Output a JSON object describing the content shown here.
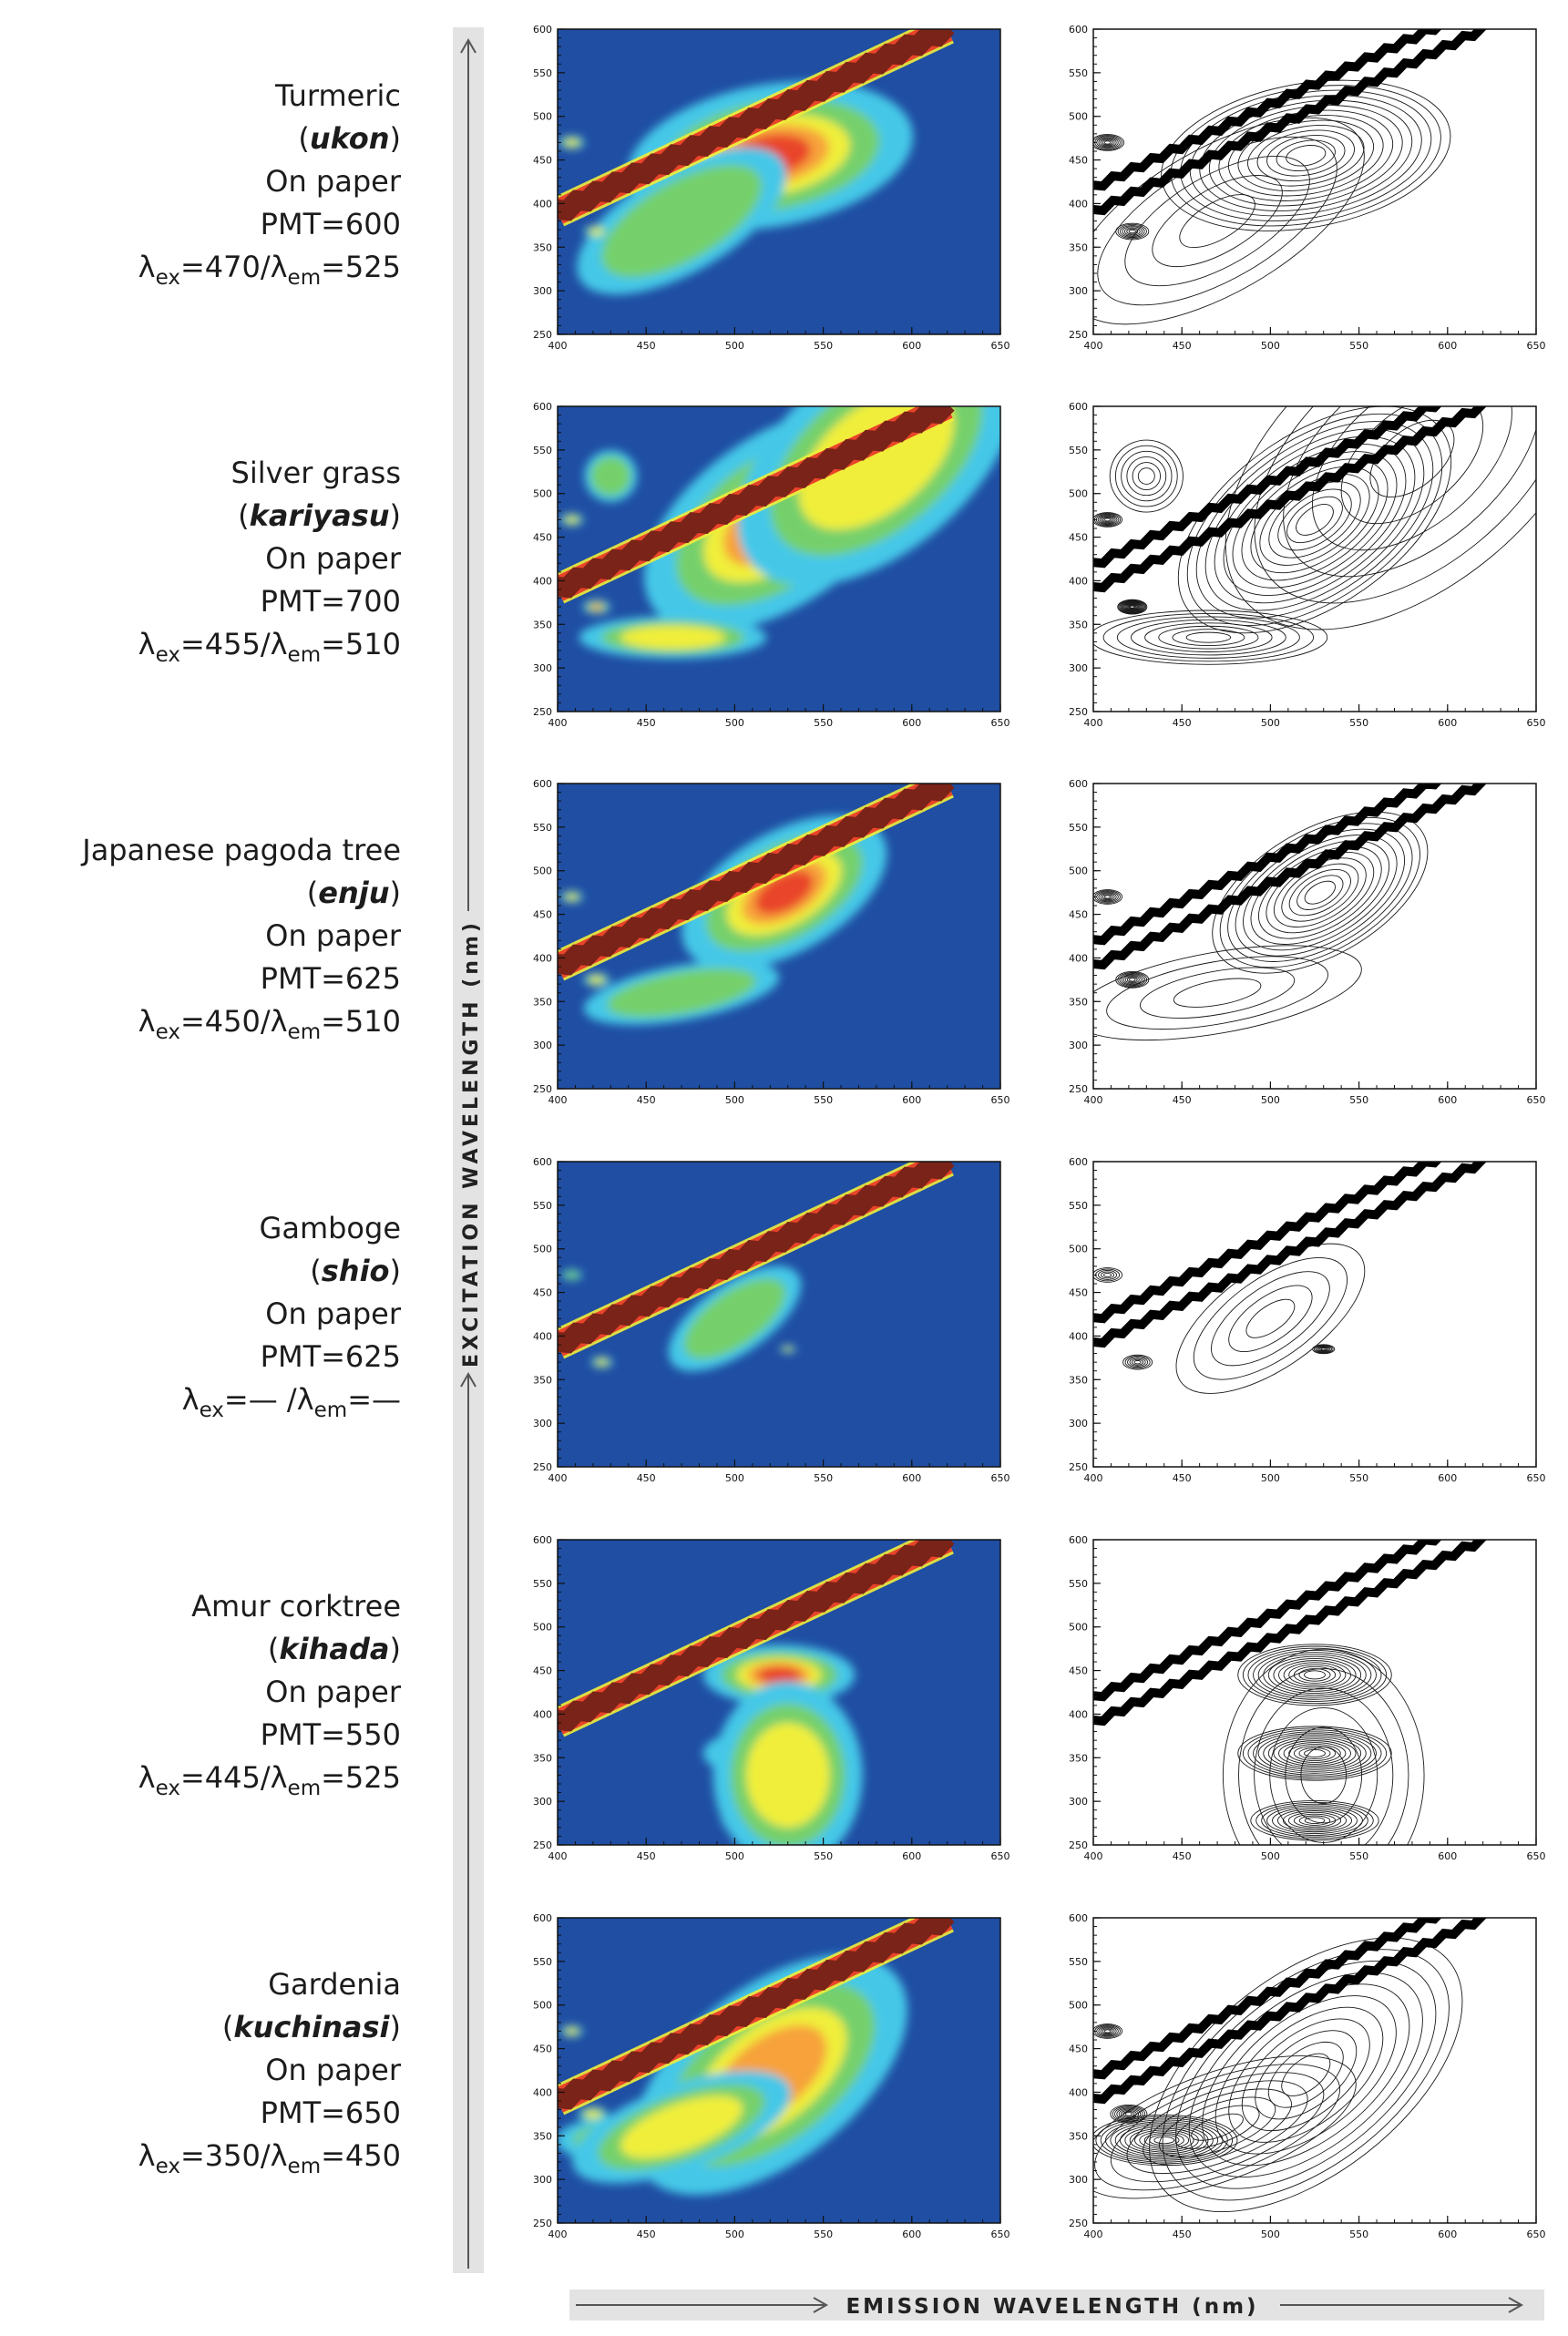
{
  "figure": {
    "y_axis_title": "EXCITATION WAVELENGTH (nm)",
    "x_axis_title": "EMISSION WAVELENGTH (nm)"
  },
  "colors": {
    "low": "#1f4ea3",
    "cyan": "#44c8e8",
    "green": "#74d06c",
    "yellow": "#f0ee3a",
    "orange": "#f7a23a",
    "red": "#e9442a",
    "band": "#7a2318",
    "axis_bar": "#e3e3e3"
  },
  "chart_data": [
    {
      "type": "heatmap",
      "name": "Turmeric",
      "label": {
        "name": "Turmeric",
        "open": "(",
        "common": "ukon",
        "close": ")",
        "substrate": "On paper",
        "pmt": "PMT=600",
        "ex": "470",
        "em": "525",
        "sep": "/"
      },
      "xlim": [
        400,
        650
      ],
      "ylim": [
        250,
        600
      ],
      "x_ticks": [
        400,
        450,
        500,
        550,
        600,
        650
      ],
      "y_ticks": [
        250,
        300,
        350,
        400,
        450,
        500,
        550,
        600
      ],
      "scatter_band": {
        "x0": 400,
        "y0": 390,
        "x1": 620,
        "y1": 600,
        "width_nm": 16
      },
      "second_order_band": {
        "x0": 400,
        "y0": 390,
        "x1": 620,
        "y1": 600
      },
      "peaks": [
        {
          "x": 520,
          "y": 455,
          "sx": 80,
          "sy": 80,
          "rot": 10,
          "a": 1.0
        },
        {
          "x": 470,
          "y": 380,
          "sx": 90,
          "sy": 80,
          "rot": 30,
          "a": 0.38
        },
        {
          "x": 408,
          "y": 470,
          "sx": 9,
          "sy": 9,
          "rot": 0,
          "a": 0.55
        },
        {
          "x": 422,
          "y": 368,
          "sx": 9,
          "sy": 9,
          "rot": 0,
          "a": 0.5
        }
      ]
    },
    {
      "type": "heatmap",
      "name": "Silver grass",
      "label": {
        "name": "Silver grass",
        "open": "(",
        "common": "kariyasu",
        "close": ")",
        "substrate": "On paper",
        "pmt": "PMT=700",
        "ex": "455",
        "em": "510",
        "sep": "/"
      },
      "xlim": [
        400,
        650
      ],
      "ylim": [
        250,
        600
      ],
      "x_ticks": [
        400,
        450,
        500,
        550,
        600,
        650
      ],
      "y_ticks": [
        250,
        300,
        350,
        400,
        450,
        500,
        550,
        600
      ],
      "scatter_band": {
        "x0": 400,
        "y0": 390,
        "x1": 620,
        "y1": 600,
        "width_nm": 16
      },
      "second_order_band": {
        "x0": 400,
        "y0": 390,
        "x1": 620,
        "y1": 600
      },
      "peaks": [
        {
          "x": 525,
          "y": 470,
          "sx": 85,
          "sy": 95,
          "rot": 35,
          "a": 1.0
        },
        {
          "x": 465,
          "y": 335,
          "sx": 65,
          "sy": 30,
          "rot": 0,
          "a": 0.55
        },
        {
          "x": 580,
          "y": 540,
          "sx": 120,
          "sy": 140,
          "rot": 40,
          "a": 0.45
        },
        {
          "x": 430,
          "y": 520,
          "sx": 20,
          "sy": 40,
          "rot": 0,
          "a": 0.4
        },
        {
          "x": 422,
          "y": 370,
          "sx": 8,
          "sy": 8,
          "rot": 0,
          "a": 0.9
        },
        {
          "x": 408,
          "y": 470,
          "sx": 8,
          "sy": 8,
          "rot": 0,
          "a": 0.6
        }
      ]
    },
    {
      "type": "heatmap",
      "name": "Japanese pagoda tree",
      "label": {
        "name": "Japanese pagoda tree",
        "open": "(",
        "common": "enju",
        "close": ")",
        "substrate": "On paper",
        "pmt": "PMT=625",
        "ex": "450",
        "em": "510",
        "sep": "/"
      },
      "xlim": [
        400,
        650
      ],
      "ylim": [
        250,
        600
      ],
      "x_ticks": [
        400,
        450,
        500,
        550,
        600,
        650
      ],
      "y_ticks": [
        250,
        300,
        350,
        400,
        450,
        500,
        550,
        600
      ],
      "scatter_band": {
        "x0": 400,
        "y0": 390,
        "x1": 620,
        "y1": 600,
        "width_nm": 16
      },
      "second_order_band": {
        "x0": 400,
        "y0": 390,
        "x1": 620,
        "y1": 600
      },
      "peaks": [
        {
          "x": 528,
          "y": 475,
          "sx": 65,
          "sy": 70,
          "rot": 30,
          "a": 0.92
        },
        {
          "x": 470,
          "y": 360,
          "sx": 80,
          "sy": 45,
          "rot": 10,
          "a": 0.3
        },
        {
          "x": 422,
          "y": 375,
          "sx": 9,
          "sy": 9,
          "rot": 0,
          "a": 0.6
        },
        {
          "x": 408,
          "y": 470,
          "sx": 8,
          "sy": 8,
          "rot": 0,
          "a": 0.5
        }
      ]
    },
    {
      "type": "heatmap",
      "name": "Gamboge",
      "label": {
        "name": "Gamboge",
        "open": "(",
        "common": "shio",
        "close": ")",
        "substrate": "On paper",
        "pmt": "PMT=625",
        "ex": "— ",
        "em": "—",
        "sep": "/"
      },
      "xlim": [
        400,
        650
      ],
      "ylim": [
        250,
        600
      ],
      "x_ticks": [
        400,
        450,
        500,
        550,
        600,
        650
      ],
      "y_ticks": [
        250,
        300,
        350,
        400,
        450,
        500,
        550,
        600
      ],
      "scatter_band": {
        "x0": 400,
        "y0": 390,
        "x1": 620,
        "y1": 600,
        "width_nm": 16
      },
      "second_order_band": {
        "x0": 400,
        "y0": 390,
        "x1": 620,
        "y1": 600
      },
      "peaks": [
        {
          "x": 500,
          "y": 420,
          "sx": 60,
          "sy": 55,
          "rot": 35,
          "a": 0.36
        },
        {
          "x": 425,
          "y": 370,
          "sx": 8,
          "sy": 8,
          "rot": 0,
          "a": 0.45
        },
        {
          "x": 408,
          "y": 470,
          "sx": 8,
          "sy": 8,
          "rot": 0,
          "a": 0.38
        },
        {
          "x": 530,
          "y": 385,
          "sx": 6,
          "sy": 5,
          "rot": 0,
          "a": 0.5
        }
      ]
    },
    {
      "type": "heatmap",
      "name": "Amur corktree",
      "label": {
        "name": "Amur corktree",
        "open": "(",
        "common": "kihada",
        "close": ")",
        "substrate": "On paper",
        "pmt": "PMT=550",
        "ex": "445",
        "em": "525",
        "sep": "/"
      },
      "xlim": [
        400,
        650
      ],
      "ylim": [
        250,
        600
      ],
      "x_ticks": [
        400,
        450,
        500,
        550,
        600,
        650
      ],
      "y_ticks": [
        250,
        300,
        350,
        400,
        450,
        500,
        550,
        600
      ],
      "scatter_band": {
        "x0": 400,
        "y0": 390,
        "x1": 620,
        "y1": 600,
        "width_nm": 16
      },
      "second_order_band": {
        "x0": 400,
        "y0": 390,
        "x1": 620,
        "y1": 600
      },
      "peaks": [
        {
          "x": 525,
          "y": 445,
          "sx": 42,
          "sy": 34,
          "rot": 0,
          "a": 1.0
        },
        {
          "x": 525,
          "y": 355,
          "sx": 42,
          "sy": 30,
          "rot": 0,
          "a": 1.0
        },
        {
          "x": 525,
          "y": 278,
          "sx": 35,
          "sy": 22,
          "rot": 0,
          "a": 0.8
        },
        {
          "x": 530,
          "y": 330,
          "sx": 55,
          "sy": 140,
          "rot": 0,
          "a": 0.45
        }
      ]
    },
    {
      "type": "heatmap",
      "name": "Gardenia",
      "label": {
        "name": "Gardenia",
        "open": "(",
        "common": "kuchinasi",
        "close": ")",
        "substrate": "On paper",
        "pmt": "PMT=650",
        "ex": "350",
        "em": "450",
        "sep": "/"
      },
      "xlim": [
        400,
        650
      ],
      "ylim": [
        250,
        600
      ],
      "x_ticks": [
        400,
        450,
        500,
        550,
        600,
        650
      ],
      "y_ticks": [
        250,
        300,
        350,
        400,
        450,
        500,
        550,
        600
      ],
      "scatter_band": {
        "x0": 400,
        "y0": 390,
        "x1": 620,
        "y1": 600,
        "width_nm": 16
      },
      "second_order_band": {
        "x0": 400,
        "y0": 390,
        "x1": 620,
        "y1": 600
      },
      "peaks": [
        {
          "x": 440,
          "y": 345,
          "sx": 40,
          "sy": 28,
          "rot": 0,
          "a": 1.0
        },
        {
          "x": 520,
          "y": 420,
          "sx": 100,
          "sy": 110,
          "rot": 38,
          "a": 0.75
        },
        {
          "x": 470,
          "y": 360,
          "sx": 80,
          "sy": 60,
          "rot": 20,
          "a": 0.55
        },
        {
          "x": 420,
          "y": 375,
          "sx": 10,
          "sy": 10,
          "rot": 0,
          "a": 0.6
        },
        {
          "x": 408,
          "y": 470,
          "sx": 8,
          "sy": 8,
          "rot": 0,
          "a": 0.5
        }
      ]
    }
  ]
}
